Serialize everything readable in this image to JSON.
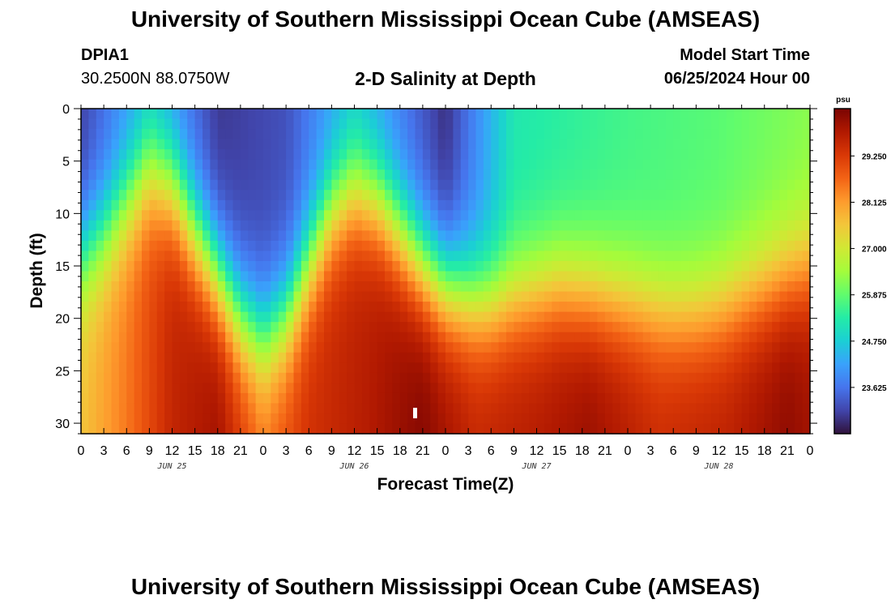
{
  "header": {
    "title_top": "University of Southern Mississippi Ocean Cube (AMSEAS)",
    "title_bottom": "University of Southern Mississippi Ocean Cube (AMSEAS)",
    "station_id": "DPIA1",
    "station_coords": "30.2500N  88.0750W",
    "plot_title": "2-D Salinity at Depth",
    "model_start_label": "Model Start Time",
    "model_start_value": "06/25/2024 Hour 00"
  },
  "chart_data": {
    "type": "heatmap",
    "title": "2-D Salinity at Depth",
    "xlabel": "Forecast Time(Z)",
    "ylabel": "Depth (ft)",
    "x_range_hours": [
      0,
      96
    ],
    "y_range_ft": [
      0,
      31
    ],
    "y_ticks": [
      0,
      5,
      10,
      15,
      20,
      25,
      30
    ],
    "x_tick_labels": [
      "0",
      "3",
      "6",
      "9",
      "12",
      "15",
      "18",
      "21",
      "0",
      "3",
      "6",
      "9",
      "12",
      "15",
      "18",
      "21",
      "0",
      "3",
      "6",
      "9",
      "12",
      "15",
      "18",
      "21",
      "0",
      "3",
      "6",
      "9",
      "12",
      "15",
      "18",
      "21",
      "0"
    ],
    "date_labels": [
      {
        "label": "JUN 25",
        "hour": 12
      },
      {
        "label": "JUN 26",
        "hour": 36
      },
      {
        "label": "JUN 27",
        "hour": 60
      },
      {
        "label": "JUN 28",
        "hour": 84
      }
    ],
    "colorbar": {
      "unit": "psu",
      "min": 22.5,
      "max": 30.4,
      "tick_values": [
        29.25,
        28.125,
        27.0,
        25.875,
        24.75,
        23.625
      ],
      "tick_labels": [
        "29.250",
        "28.125",
        "27.000",
        "25.875",
        "24.750",
        "23.625"
      ],
      "colors": [
        "#30123b",
        "#4145ab",
        "#4675ed",
        "#39a2fc",
        "#1bcfd4",
        "#24eca6",
        "#61fc6c",
        "#a4fc3b",
        "#d1e834",
        "#f3c63a",
        "#fe9b2d",
        "#f36315",
        "#d93806",
        "#b11901",
        "#7a0402"
      ]
    },
    "interface_depth_ft": [
      {
        "hour": 0,
        "depth": 14
      },
      {
        "hour": 3,
        "depth": 12
      },
      {
        "hour": 6,
        "depth": 9
      },
      {
        "hour": 9,
        "depth": 6
      },
      {
        "hour": 12,
        "depth": 7.5
      },
      {
        "hour": 15,
        "depth": 12
      },
      {
        "hour": 18,
        "depth": 16
      },
      {
        "hour": 21,
        "depth": 20
      },
      {
        "hour": 24,
        "depth": 22
      },
      {
        "hour": 27,
        "depth": 20
      },
      {
        "hour": 30,
        "depth": 15
      },
      {
        "hour": 33,
        "depth": 10
      },
      {
        "hour": 36,
        "depth": 8
      },
      {
        "hour": 39,
        "depth": 9
      },
      {
        "hour": 42,
        "depth": 12
      },
      {
        "hour": 45,
        "depth": 15
      },
      {
        "hour": 48,
        "depth": 17
      },
      {
        "hour": 51,
        "depth": 18
      },
      {
        "hour": 54,
        "depth": 18.5
      },
      {
        "hour": 57,
        "depth": 18
      },
      {
        "hour": 60,
        "depth": 17.5
      },
      {
        "hour": 63,
        "depth": 17
      },
      {
        "hour": 66,
        "depth": 17.5
      },
      {
        "hour": 69,
        "depth": 18
      },
      {
        "hour": 72,
        "depth": 18.5
      },
      {
        "hour": 75,
        "depth": 19
      },
      {
        "hour": 78,
        "depth": 19.5
      },
      {
        "hour": 81,
        "depth": 19.5
      },
      {
        "hour": 84,
        "depth": 19
      },
      {
        "hour": 87,
        "depth": 18
      },
      {
        "hour": 90,
        "depth": 17
      },
      {
        "hour": 93,
        "depth": 16
      },
      {
        "hour": 96,
        "depth": 15
      }
    ],
    "surface_salinity_psu": [
      {
        "hour": 0,
        "value": 23.0
      },
      {
        "hour": 9,
        "value": 24.5
      },
      {
        "hour": 18,
        "value": 22.9
      },
      {
        "hour": 27,
        "value": 23.2
      },
      {
        "hour": 36,
        "value": 24.6
      },
      {
        "hour": 48,
        "value": 22.8
      },
      {
        "hour": 57,
        "value": 25.2
      },
      {
        "hour": 72,
        "value": 25.6
      },
      {
        "hour": 84,
        "value": 25.8
      },
      {
        "hour": 96,
        "value": 26.2
      }
    ],
    "bottom_salinity_psu": [
      {
        "hour": 0,
        "value": 27.6
      },
      {
        "hour": 6,
        "value": 28.5
      },
      {
        "hour": 12,
        "value": 29.6
      },
      {
        "hour": 18,
        "value": 30.0
      },
      {
        "hour": 24,
        "value": 28.6
      },
      {
        "hour": 30,
        "value": 29.4
      },
      {
        "hour": 38,
        "value": 29.8
      },
      {
        "hour": 45,
        "value": 30.3
      },
      {
        "hour": 52,
        "value": 29.6
      },
      {
        "hour": 60,
        "value": 29.8
      },
      {
        "hour": 67,
        "value": 30.1
      },
      {
        "hour": 76,
        "value": 29.5
      },
      {
        "hour": 85,
        "value": 29.7
      },
      {
        "hour": 93,
        "value": 30.2
      },
      {
        "hour": 96,
        "value": 30.0
      }
    ]
  }
}
